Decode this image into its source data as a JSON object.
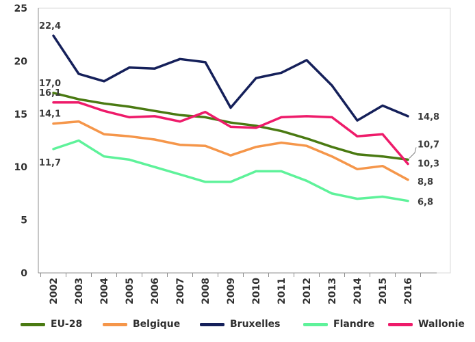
{
  "chart_data": {
    "type": "line",
    "x": [
      "2002",
      "2003",
      "2004",
      "2005",
      "2006",
      "2007",
      "2008",
      "2009",
      "2010",
      "2011",
      "2012",
      "2013",
      "2014",
      "2015",
      "2016"
    ],
    "ylim": [
      0,
      25
    ],
    "yticks": [
      "0",
      "5",
      "10",
      "15",
      "20",
      "25"
    ],
    "grid": false,
    "legend_position": "bottom",
    "series": [
      {
        "name": "EU-28",
        "color": "#4a7a12",
        "values": [
          17.0,
          16.4,
          16.0,
          15.7,
          15.3,
          14.9,
          14.7,
          14.2,
          13.9,
          13.4,
          12.7,
          11.9,
          11.2,
          11.0,
          10.7
        ]
      },
      {
        "name": "Belgique",
        "color": "#f5964a",
        "values": [
          14.1,
          14.3,
          13.1,
          12.9,
          12.6,
          12.1,
          12.0,
          11.1,
          11.9,
          12.3,
          12.0,
          11.0,
          9.8,
          10.1,
          8.8
        ]
      },
      {
        "name": "Bruxelles",
        "color": "#15205a",
        "values": [
          22.4,
          18.8,
          18.1,
          19.4,
          19.3,
          20.2,
          19.9,
          15.6,
          18.4,
          18.9,
          20.1,
          17.7,
          14.4,
          15.8,
          14.8
        ]
      },
      {
        "name": "Flandre",
        "color": "#5ef29a",
        "values": [
          11.7,
          12.5,
          11.0,
          10.7,
          10.0,
          9.3,
          8.6,
          8.6,
          9.6,
          9.6,
          8.7,
          7.5,
          7.0,
          7.2,
          6.8
        ]
      },
      {
        "name": "Wallonie",
        "color": "#ee1b6a",
        "values": [
          16.1,
          16.1,
          15.3,
          14.7,
          14.8,
          14.3,
          15.2,
          13.8,
          13.7,
          14.7,
          14.8,
          14.7,
          12.9,
          13.1,
          10.3
        ]
      }
    ],
    "data_labels": [
      {
        "text": "22,4",
        "series": "Bruxelles",
        "index": 0
      },
      {
        "text": "17,0",
        "series": "EU-28",
        "index": 0
      },
      {
        "text": "16,1",
        "series": "Wallonie",
        "index": 0
      },
      {
        "text": "14,1",
        "series": "Belgique",
        "index": 0
      },
      {
        "text": "11,7",
        "series": "Flandre",
        "index": 0
      },
      {
        "text": "14,8",
        "series": "Bruxelles",
        "index": 14
      },
      {
        "text": "10,7",
        "series": "EU-28",
        "index": 14
      },
      {
        "text": "10,3",
        "series": "Wallonie",
        "index": 14
      },
      {
        "text": "8,8",
        "series": "Belgique",
        "index": 14
      },
      {
        "text": "6,8",
        "series": "Flandre",
        "index": 14
      }
    ]
  }
}
